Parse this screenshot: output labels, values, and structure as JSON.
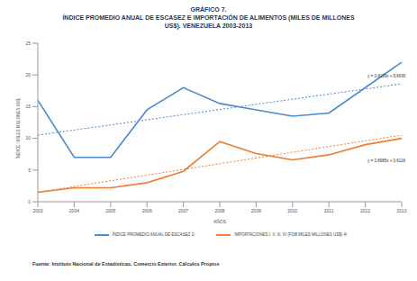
{
  "chart_data": {
    "type": "line",
    "title": "GRÁFICO 7.",
    "subtitle": "ÍNDICE PROMEDIO ANUAL DE ESCASEZ E IMPORTACIÓN DE ALIMENTOS (MILES DE MILLONES US$). VENEZUELA 2003-2013",
    "x_label": "AÑOS",
    "y_label": "ÍNDICE / MILES MILLONES US$",
    "categories": [
      "2003",
      "2004",
      "2005",
      "2006",
      "2007",
      "2008",
      "2009",
      "2010",
      "2011",
      "2012",
      "2013"
    ],
    "series": [
      {
        "name": "ÍNDICE PROMEDIO ANUAL DE ESCASEZ 1/",
        "color": "#4a8bd0",
        "values": [
          16,
          7,
          7,
          14.5,
          18,
          15.5,
          14.5,
          13.5,
          14,
          18,
          22
        ]
      },
      {
        "name": "IMPORTACIONES I, II, III, IV (FOB MILES MILLONES US$) 4/",
        "color": "#ed7d31",
        "values": [
          1.5,
          2.2,
          2.2,
          3,
          4.8,
          9.5,
          7.6,
          6.6,
          7.4,
          9,
          10
        ]
      },
      {
        "color": "#4a8bd0",
        "line_style": "dotted",
        "values": [
          10.5,
          null,
          null,
          null,
          null,
          null,
          null,
          null,
          null,
          null,
          18.6
        ]
      },
      {
        "color": "#ed7d31",
        "line_style": "dotted",
        "values": [
          1.5,
          null,
          null,
          null,
          null,
          null,
          null,
          null,
          null,
          null,
          10.5
        ]
      }
    ],
    "annotations": [
      "y = 0,8139x + 9,6636",
      "y = 0,8985x + 0,6118"
    ],
    "source": "Fuente: Instituto Nacional de Estadísticas. Comercio Exterior. Cálculos Propios",
    "ylim": [
      0,
      25
    ],
    "yticks": [
      0,
      5,
      10,
      15,
      20,
      25
    ],
    "grid": false,
    "legend": "bottom"
  }
}
